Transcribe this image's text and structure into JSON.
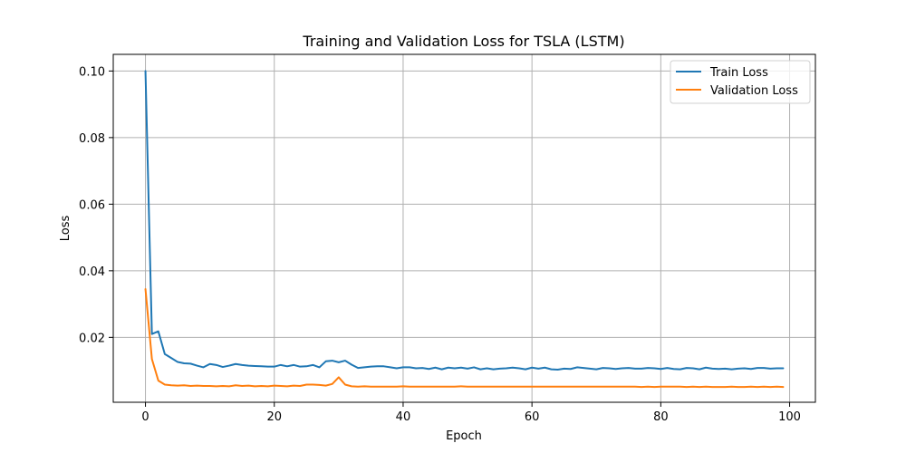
{
  "chart_data": {
    "type": "line",
    "title": "Training and Validation Loss for TSLA (LSTM)",
    "xlabel": "Epoch",
    "ylabel": "Loss",
    "xlim": [
      -5,
      104
    ],
    "ylim": [
      0.0005,
      0.105
    ],
    "xticks": [
      0,
      20,
      40,
      60,
      80,
      100
    ],
    "yticks": [
      0.02,
      0.04,
      0.06,
      0.08,
      0.1
    ],
    "xtick_labels": [
      "0",
      "20",
      "40",
      "60",
      "80",
      "100"
    ],
    "ytick_labels": [
      "0.02",
      "0.04",
      "0.06",
      "0.08",
      "0.10"
    ],
    "grid": true,
    "legend_position": "top-right",
    "series": [
      {
        "name": "Train Loss",
        "color": "#1f77b4",
        "values": [
          0.1,
          0.021,
          0.0218,
          0.015,
          0.0138,
          0.0126,
          0.0122,
          0.0121,
          0.0115,
          0.011,
          0.012,
          0.0117,
          0.0111,
          0.0115,
          0.012,
          0.0117,
          0.0115,
          0.0114,
          0.0113,
          0.0112,
          0.0112,
          0.0117,
          0.0113,
          0.0117,
          0.0112,
          0.0113,
          0.0117,
          0.011,
          0.0128,
          0.013,
          0.0125,
          0.013,
          0.0118,
          0.0108,
          0.011,
          0.0112,
          0.0113,
          0.0113,
          0.011,
          0.0107,
          0.011,
          0.011,
          0.0107,
          0.0108,
          0.0105,
          0.0109,
          0.0104,
          0.0109,
          0.0107,
          0.0109,
          0.0106,
          0.011,
          0.0104,
          0.0107,
          0.0104,
          0.0106,
          0.0107,
          0.0109,
          0.0107,
          0.0104,
          0.0109,
          0.0106,
          0.0109,
          0.0104,
          0.0103,
          0.0106,
          0.0105,
          0.011,
          0.0108,
          0.0106,
          0.0104,
          0.0108,
          0.0107,
          0.0105,
          0.0107,
          0.0108,
          0.0106,
          0.0106,
          0.0108,
          0.0107,
          0.0105,
          0.0108,
          0.0105,
          0.0104,
          0.0108,
          0.0107,
          0.0104,
          0.0109,
          0.0106,
          0.0105,
          0.0106,
          0.0104,
          0.0106,
          0.0107,
          0.0105,
          0.0108,
          0.0108,
          0.0106,
          0.0107,
          0.0107
        ]
      },
      {
        "name": "Validation Loss",
        "color": "#ff7f0e",
        "values": [
          0.0345,
          0.0135,
          0.007,
          0.0058,
          0.0056,
          0.0055,
          0.0056,
          0.0054,
          0.0055,
          0.0054,
          0.0054,
          0.0053,
          0.0054,
          0.0053,
          0.0056,
          0.0054,
          0.0055,
          0.0053,
          0.0054,
          0.0053,
          0.0055,
          0.0054,
          0.0053,
          0.0055,
          0.0054,
          0.0058,
          0.0058,
          0.0057,
          0.0055,
          0.006,
          0.008,
          0.0058,
          0.0053,
          0.0052,
          0.0053,
          0.0052,
          0.0052,
          0.0052,
          0.0052,
          0.0052,
          0.0053,
          0.0052,
          0.0052,
          0.0052,
          0.0052,
          0.0052,
          0.0052,
          0.0052,
          0.0052,
          0.0053,
          0.0052,
          0.0052,
          0.0052,
          0.0052,
          0.0052,
          0.0052,
          0.0052,
          0.0052,
          0.0052,
          0.0052,
          0.0052,
          0.0052,
          0.0052,
          0.0052,
          0.0052,
          0.0052,
          0.0052,
          0.0052,
          0.0052,
          0.0052,
          0.0052,
          0.0052,
          0.0052,
          0.0052,
          0.0052,
          0.0052,
          0.0052,
          0.0051,
          0.0052,
          0.0051,
          0.0052,
          0.0052,
          0.0052,
          0.0052,
          0.0051,
          0.0052,
          0.0051,
          0.0052,
          0.0051,
          0.0051,
          0.0051,
          0.0052,
          0.0051,
          0.0051,
          0.0052,
          0.0051,
          0.0052,
          0.0051,
          0.0052,
          0.0051
        ]
      }
    ]
  }
}
